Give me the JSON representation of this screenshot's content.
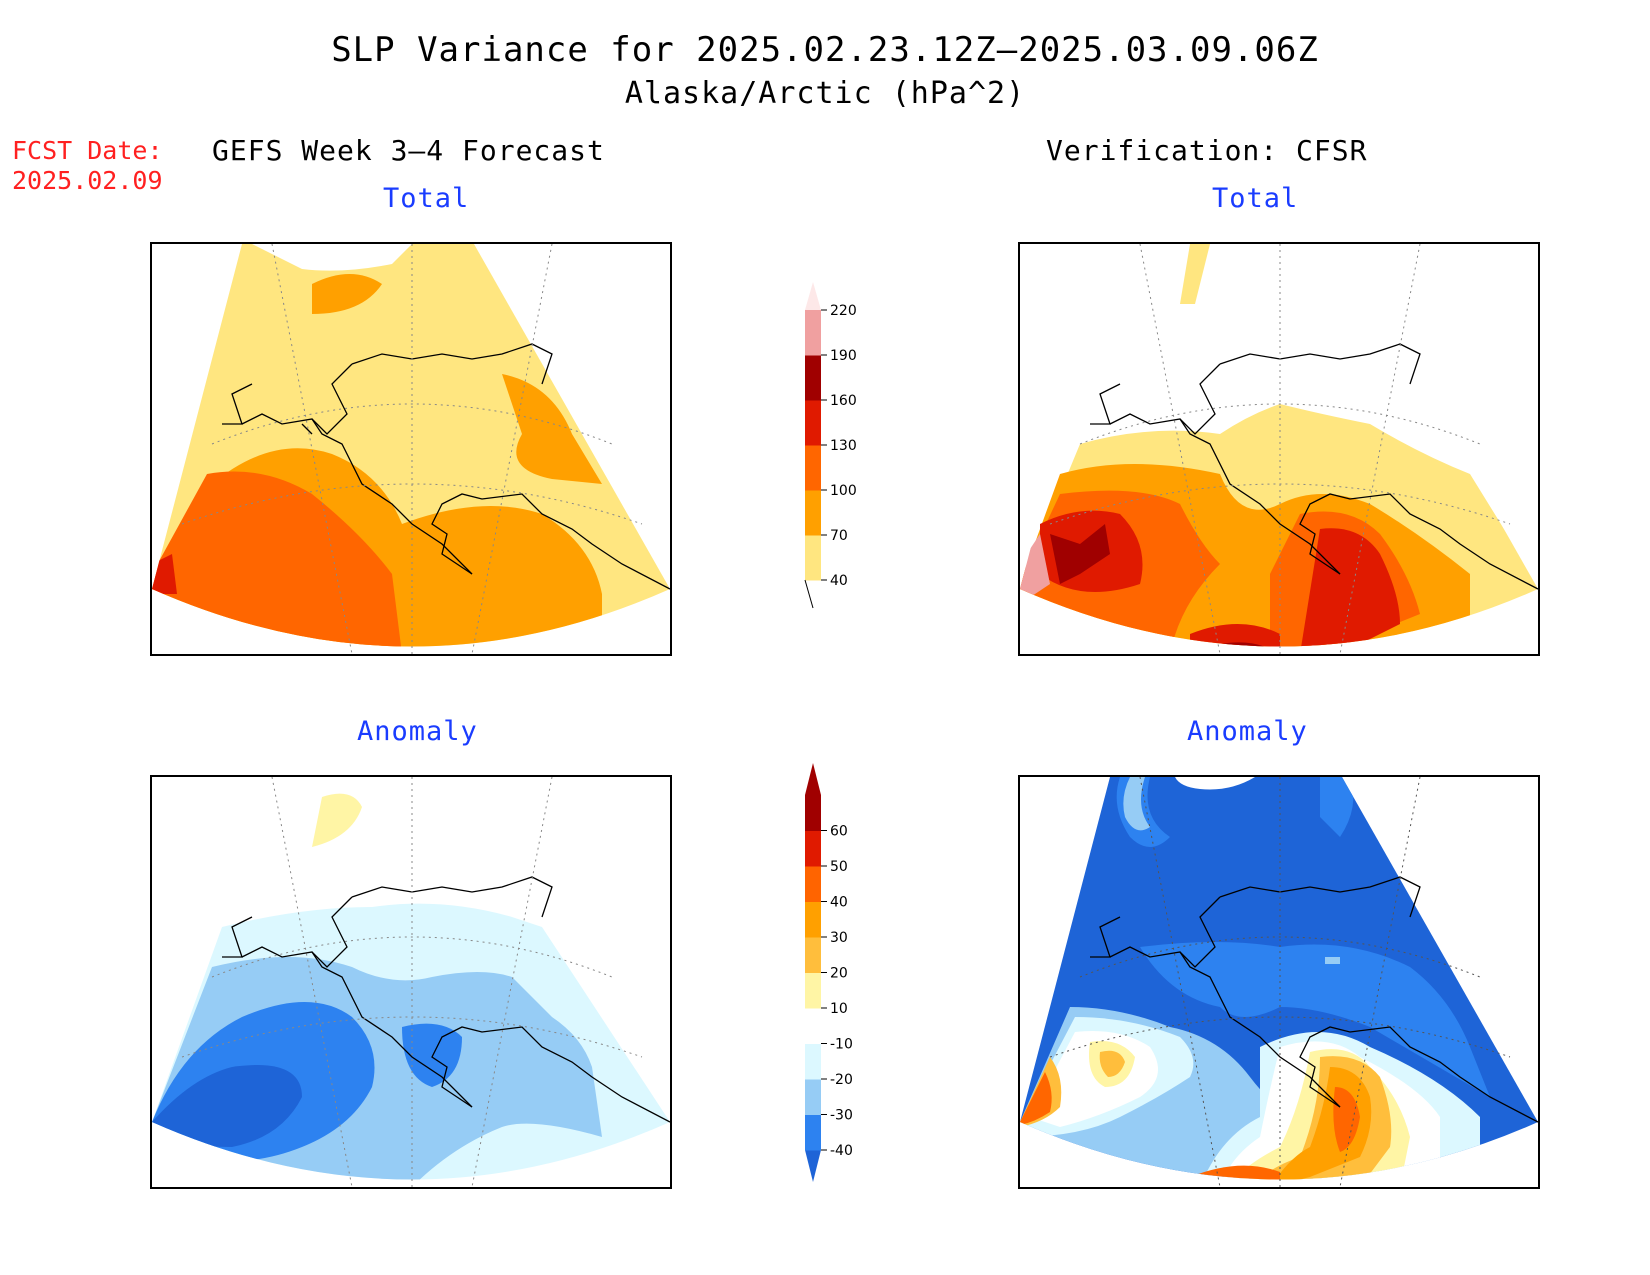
{
  "header": {
    "title": "SLP Variance for 2025.02.23.12Z–2025.03.09.06Z",
    "subtitle": "Alaska/Arctic (hPa^2)"
  },
  "forecast_date": {
    "label": "FCST Date:",
    "value": "2025.02.09"
  },
  "columns": {
    "left_title": "GEFS Week 3–4 Forecast",
    "right_title": "Verification: CFSR"
  },
  "panels": {
    "total_label": "Total",
    "anomaly_label": "Anomaly"
  },
  "colorbars": {
    "total": {
      "levels": [
        "40",
        "70",
        "100",
        "130",
        "160",
        "190",
        "220"
      ],
      "colors": [
        "#ffe680",
        "#ffa000",
        "#ff6600",
        "#e01a00",
        "#a00000",
        "#f0a0a0",
        "#fde8e8"
      ]
    },
    "anomaly": {
      "levels": [
        "-40",
        "-30",
        "-20",
        "-10",
        "10",
        "20",
        "30",
        "40",
        "50",
        "60"
      ],
      "colors": [
        "#1e64d7",
        "#2d82f0",
        "#96ccf5",
        "#dcf8ff",
        "#ffffff",
        "#fff5a5",
        "#ffbe3c",
        "#ffa000",
        "#ff6400",
        "#e01a00",
        "#a00000"
      ]
    }
  },
  "colors": {
    "title_text": "#000000",
    "forecast_date_text": "#ff2020",
    "panel_label_text": "#1a3cff"
  }
}
